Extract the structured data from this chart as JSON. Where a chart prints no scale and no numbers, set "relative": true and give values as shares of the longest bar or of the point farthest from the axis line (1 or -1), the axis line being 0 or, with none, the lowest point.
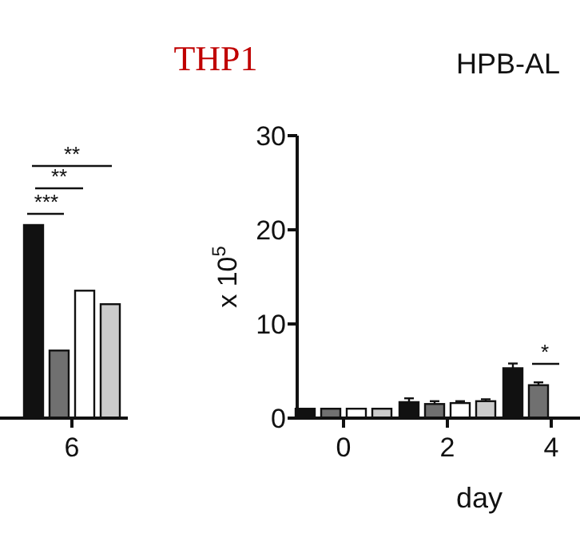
{
  "chart_data": [
    {
      "type": "bar",
      "categories": [
        "6"
      ],
      "relative": true,
      "series": [
        {
          "color": "#111111",
          "values": [
            1
          ]
        },
        {
          "color": "#707070",
          "values": [
            0.35
          ]
        },
        {
          "color": "#ffffff",
          "values": [
            0.66
          ]
        },
        {
          "color": "#cccccc",
          "values": [
            0.59
          ]
        }
      ],
      "annotations": [
        "***",
        "**",
        "**",
        "THP1"
      ]
    },
    {
      "type": "bar",
      "title": "HPB-AL",
      "ylabel": "x 10$^{5}$",
      "xlabel": "day",
      "categories": [
        "0",
        "2",
        "4"
      ],
      "ylim": [
        0,
        30
      ],
      "yticks": [
        0,
        10,
        20,
        30
      ],
      "series": [
        {
          "color": "#111111",
          "values": [
            1,
            1.7,
            5.3
          ],
          "errors": [
            null,
            0.4,
            0.5
          ]
        },
        {
          "color": "#707070",
          "values": [
            1,
            1.5,
            3.5
          ],
          "errors": [
            null,
            0.3,
            0.3
          ]
        },
        {
          "color": "#ffffff",
          "values": [
            1,
            1.6,
            null
          ],
          "errors": [
            null,
            0.2,
            null
          ]
        },
        {
          "color": "#cccccc",
          "values": [
            1,
            1.8,
            null
          ],
          "errors": [
            null,
            0.2,
            null
          ]
        }
      ],
      "annotations": [
        "*"
      ]
    }
  ]
}
